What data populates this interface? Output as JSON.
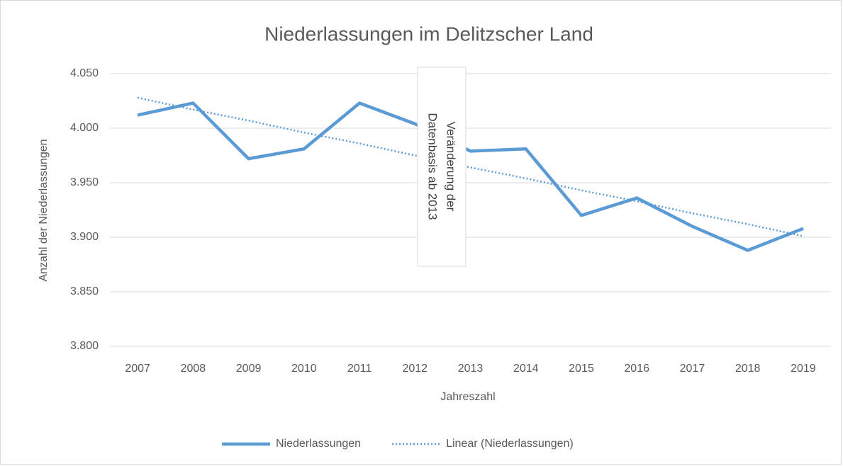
{
  "chart_data": {
    "type": "line",
    "title": "Niederlassungen im Delitzscher Land",
    "x_label": "Jahreszahl",
    "y_label": "Anzahl der Niederlassungen",
    "annotation": [
      "Veränderung der",
      "Datenbasis ab 2013"
    ],
    "categories": [
      "2007",
      "2008",
      "2009",
      "2010",
      "2011",
      "2012",
      "2013",
      "2014",
      "2015",
      "2016",
      "2017",
      "2018",
      "2019"
    ],
    "series": [
      {
        "name": "Niederlassungen",
        "color": "#5b9bd5",
        "style": "solid",
        "values": [
          4012,
          4023,
          3972,
          3981,
          4023,
          4004,
          3979,
          3981,
          3920,
          3936,
          3910,
          3888,
          3908
        ]
      },
      {
        "name": "Linear (Niederlassungen)",
        "color": "#5b9bd5",
        "style": "dotted",
        "values": [
          4028,
          4017,
          4007,
          3996,
          3986,
          3975,
          3964,
          3954,
          3943,
          3933,
          3922,
          3912,
          3901
        ]
      }
    ],
    "ylim": [
      3800,
      4050
    ],
    "yticks": [
      {
        "value": 3800,
        "label": "3.800"
      },
      {
        "value": 3850,
        "label": "3.850"
      },
      {
        "value": 3900,
        "label": "3.900"
      },
      {
        "value": 3950,
        "label": "3.950"
      },
      {
        "value": 4000,
        "label": "4.000"
      },
      {
        "value": 4050,
        "label": "4.050"
      }
    ],
    "grid": true,
    "legend": "bottom"
  }
}
